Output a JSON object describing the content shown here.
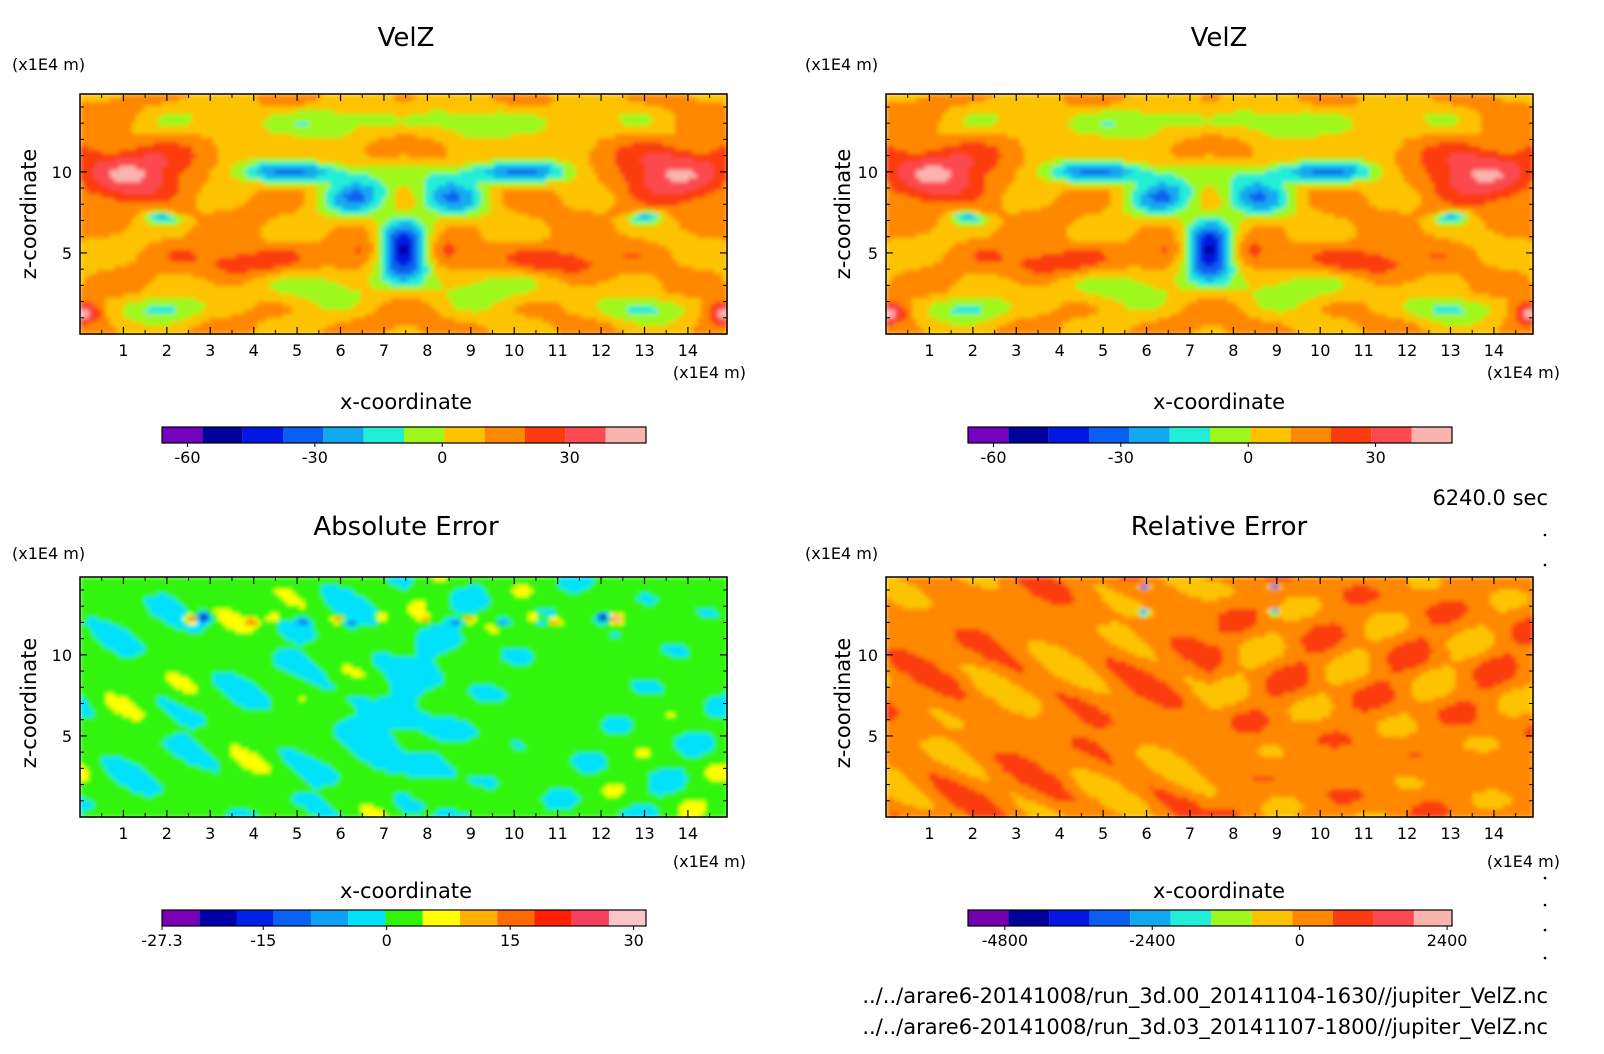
{
  "colors": {
    "velz": [
      "#7400c0",
      "#00009a",
      "#0018e0",
      "#0a5ff0",
      "#12a8f0",
      "#22eed8",
      "#9ef81e",
      "#fdc300",
      "#ff8800",
      "#fb3c10",
      "#fc4a50",
      "#fab4ae"
    ],
    "abs": [
      "#7a00b4",
      "#0000a8",
      "#0022e6",
      "#0a62f2",
      "#10a0f6",
      "#00e2fc",
      "#30f50a",
      "#ffff00",
      "#ffb000",
      "#ff6a00",
      "#ff2000",
      "#f54060",
      "#f8c6c6"
    ],
    "rel": [
      "#7400b0",
      "#00009a",
      "#0018e0",
      "#0a5ff0",
      "#12a8f0",
      "#22eed8",
      "#9ef81e",
      "#fdc300",
      "#ff8800",
      "#fb3c10",
      "#fc4a50",
      "#fab4ae"
    ]
  },
  "chart_data": [
    {
      "type": "heatmap",
      "title": "VelZ",
      "xlabel": "x-coordinate",
      "ylabel": "z-coordinate",
      "x_unit": "(x1E4 m)",
      "y_unit": "(x1E4 m)",
      "xlim": [
        0,
        14.9
      ],
      "ylim": [
        0,
        14.8
      ],
      "x_ticks": [
        "1",
        "2",
        "3",
        "4",
        "5",
        "6",
        "7",
        "8",
        "9",
        "10",
        "11",
        "12",
        "13",
        "14"
      ],
      "y_ticks": [
        "5",
        "10"
      ],
      "colorbar": {
        "min": -66,
        "max": 48,
        "step": 9.5,
        "ticks": [
          -60,
          -30,
          0,
          30
        ],
        "tick_labels": [
          "-60",
          "-30",
          "0",
          "30"
        ]
      }
    },
    {
      "type": "heatmap",
      "title": "VelZ",
      "xlabel": "x-coordinate",
      "ylabel": "z-coordinate",
      "x_unit": "(x1E4 m)",
      "y_unit": "(x1E4 m)",
      "xlim": [
        0,
        14.9
      ],
      "ylim": [
        0,
        14.8
      ],
      "x_ticks": [
        "1",
        "2",
        "3",
        "4",
        "5",
        "6",
        "7",
        "8",
        "9",
        "10",
        "11",
        "12",
        "13",
        "14"
      ],
      "y_ticks": [
        "5",
        "10"
      ],
      "colorbar": {
        "min": -66,
        "max": 48,
        "step": 9.5,
        "ticks": [
          -60,
          -30,
          0,
          30
        ],
        "tick_labels": [
          "-60",
          "-30",
          "0",
          "30"
        ]
      }
    },
    {
      "type": "heatmap",
      "title": "Absolute Error",
      "xlabel": "x-coordinate",
      "ylabel": "z-coordinate",
      "x_unit": "(x1E4 m)",
      "y_unit": "(x1E4 m)",
      "xlim": [
        0,
        14.9
      ],
      "ylim": [
        0,
        14.8
      ],
      "x_ticks": [
        "1",
        "2",
        "3",
        "4",
        "5",
        "6",
        "7",
        "8",
        "9",
        "10",
        "11",
        "12",
        "13",
        "14"
      ],
      "y_ticks": [
        "5",
        "10"
      ],
      "colorbar": {
        "min": -27.3,
        "max": 31.5,
        "step": 4.525,
        "ticks": [
          -27.3,
          -15,
          0,
          15,
          30
        ],
        "tick_labels": [
          "-27.3",
          "-15",
          "0",
          "15",
          "30"
        ]
      }
    },
    {
      "type": "heatmap",
      "title": "Relative Error",
      "xlabel": "x-coordinate",
      "ylabel": "z-coordinate",
      "x_unit": "(x1E4 m)",
      "y_unit": "(x1E4 m)",
      "xlim": [
        0,
        14.9
      ],
      "ylim": [
        0,
        14.8
      ],
      "x_ticks": [
        "1",
        "2",
        "3",
        "4",
        "5",
        "6",
        "7",
        "8",
        "9",
        "10",
        "11",
        "12",
        "13",
        "14"
      ],
      "y_ticks": [
        "5",
        "10"
      ],
      "colorbar": {
        "min": -5400,
        "max": 2480,
        "step": 660,
        "ticks": [
          -4800,
          -2400,
          0,
          2400
        ],
        "tick_labels": [
          "-4800",
          "-2400",
          "0",
          "2400"
        ]
      }
    }
  ],
  "info": {
    "time": "6240.0 sec",
    "file1": "../../arare6-20141008/run_3d.00_20141104-1630//jupiter_VelZ.nc",
    "file2": "../../arare6-20141008/run_3d.03_20141107-1800//jupiter_VelZ.nc"
  }
}
